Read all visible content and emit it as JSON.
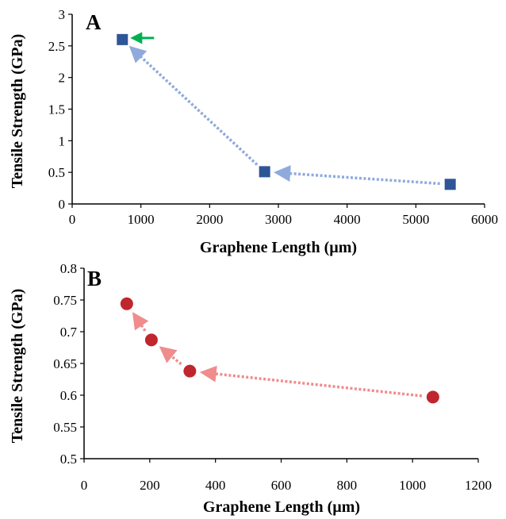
{
  "chart_data": [
    {
      "type": "scatter",
      "panel_label": "A",
      "xlabel": "Graphene Length (µm)",
      "ylabel": "Tensile Strength (GPa)",
      "xlim": [
        0,
        6000
      ],
      "ylim": [
        0,
        3
      ],
      "xticks": [
        "0",
        "1000",
        "2000",
        "3000",
        "4000",
        "5000",
        "6000"
      ],
      "yticks": [
        "0",
        "0.5",
        "1",
        "1.5",
        "2",
        "2.5",
        "3"
      ],
      "grid": false,
      "marker": "square",
      "color": "#2e5597",
      "arrow_color": "#8faadc",
      "highlight_arrow_color": "#00b050",
      "points": [
        {
          "x": 730,
          "y": 2.6
        },
        {
          "x": 2800,
          "y": 0.51
        },
        {
          "x": 5500,
          "y": 0.31
        }
      ],
      "arrows": [
        {
          "from": 2,
          "to": 1
        },
        {
          "from": 1,
          "to": 0
        }
      ],
      "highlight_point": 0
    },
    {
      "type": "scatter",
      "panel_label": "B",
      "xlabel": "Graphene Length (µm)",
      "ylabel": "Tensile Strength (GPa)",
      "xlim": [
        0,
        1200
      ],
      "ylim": [
        0.5,
        0.8
      ],
      "xticks": [
        "0",
        "200",
        "400",
        "600",
        "800",
        "1000",
        "1200"
      ],
      "yticks": [
        "0.5",
        "0.55",
        "0.6",
        "0.65",
        "0.7",
        "0.75",
        "0.8"
      ],
      "grid": false,
      "marker": "circle",
      "color": "#c0262e",
      "arrow_color": "#f08c8c",
      "points": [
        {
          "x": 130,
          "y": 0.744
        },
        {
          "x": 205,
          "y": 0.687
        },
        {
          "x": 322,
          "y": 0.638
        },
        {
          "x": 1062,
          "y": 0.597
        }
      ],
      "arrows": [
        {
          "from": 3,
          "to": 2
        },
        {
          "from": 2,
          "to": 1
        },
        {
          "from": 1,
          "to": 0
        }
      ]
    }
  ]
}
